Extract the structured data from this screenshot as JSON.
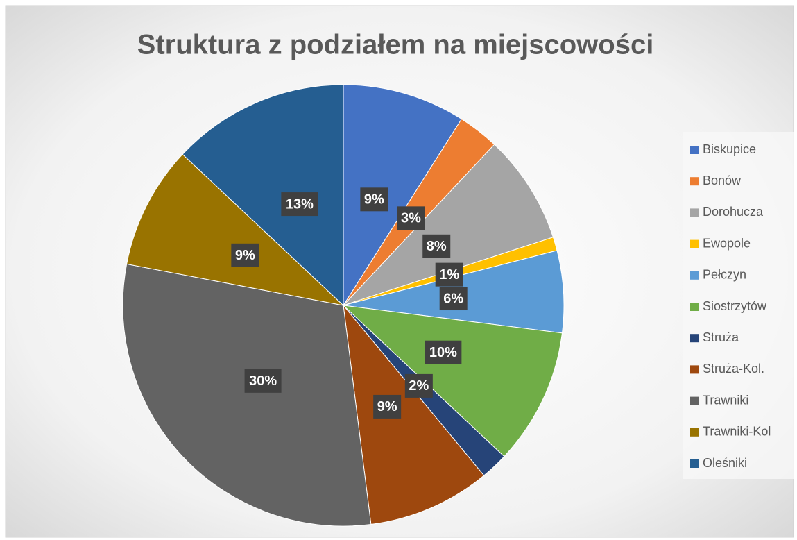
{
  "chart_data": {
    "type": "pie",
    "title": "Struktura z podziałem na miejscowości",
    "categories": [
      "Biskupice",
      "Bonów",
      "Dorohucza",
      "Ewopole",
      "Pełczyn",
      "Siostrzytów",
      "Struża",
      "Struża-Kol.",
      "Trawniki",
      "Trawniki-Kol",
      "Oleśniki"
    ],
    "values": [
      9,
      3,
      8,
      1,
      6,
      10,
      2,
      9,
      30,
      9,
      13
    ],
    "value_labels": [
      "9%",
      "3%",
      "8%",
      "1%",
      "6%",
      "10%",
      "2%",
      "9%",
      "30%",
      "9%",
      "13%"
    ],
    "colors": [
      "#4472c4",
      "#ed7d31",
      "#a5a5a5",
      "#ffc000",
      "#5b9bd5",
      "#70ad47",
      "#264478",
      "#9e480e",
      "#636363",
      "#997300",
      "#255e91"
    ],
    "legend": "right"
  }
}
